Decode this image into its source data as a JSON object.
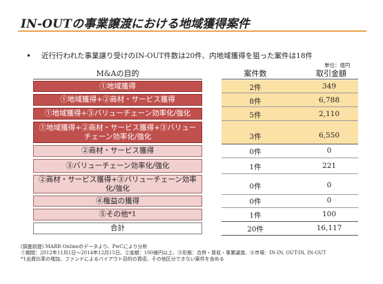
{
  "title": "IN-OUTの事業譲渡における地域獲得案件",
  "bullet": "近行行われた事業譲り受けのIN-OUT件数は20件、内地域獲得を狙った案件は18件",
  "unit_label": "単位：億円",
  "table": {
    "headers": [
      "M&Aの目的",
      "案件数",
      "取引金額"
    ],
    "rows": [
      {
        "purpose": "①地域獲得",
        "count": "2件",
        "amount": "349"
      },
      {
        "purpose": "①地域獲得+②商材・サービス獲得",
        "count": "8件",
        "amount": "6,788"
      },
      {
        "purpose": "①地域獲得+③バリューチェーン効率化/強化",
        "count": "5件",
        "amount": "2,110"
      },
      {
        "purpose": "①地域獲得+②商材・サービス獲得+③バリューチェーン効率化/強化",
        "count": "3件",
        "amount": "6,550"
      },
      {
        "purpose": "②商材・サービス獲得",
        "count": "0件",
        "amount": "0"
      },
      {
        "purpose": "③バリューチェーン効率化/強化",
        "count": "1件",
        "amount": "221"
      },
      {
        "purpose": "②商材・サービス獲得+③バリューチェーン効率化/強化",
        "count": "0件",
        "amount": "0"
      },
      {
        "purpose": "④権益の獲得",
        "count": "0件",
        "amount": "0"
      },
      {
        "purpose": "⑤その他*1",
        "count": "1件",
        "amount": "100"
      }
    ],
    "total": {
      "label": "合計",
      "count": "20件",
      "amount": "16,117"
    }
  },
  "footnotes": [
    "(調査前提) MARR Onlineのデータより、PwCにより分析",
    "①期間：2012年11月1日～2014年12月15日、②金額：100億円以上、③形態：合併・買収・事業譲渡、④市場：IN-IN, OUT-IN, IN-OUT",
    "*1出資比率の増加、ファンドによるバイアウト目的の買収、その他区分できない案件を含める"
  ]
}
